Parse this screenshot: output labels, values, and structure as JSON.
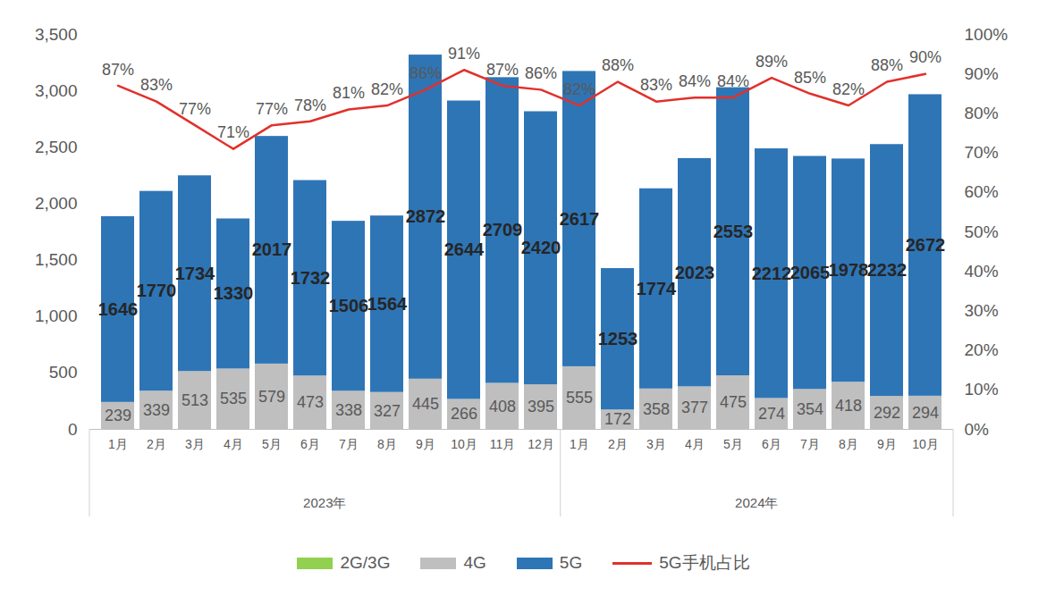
{
  "chart_data": {
    "type": "bar",
    "stacked": true,
    "data_labels": true,
    "grid": false,
    "legend": "bottom",
    "categories": [
      "1月",
      "2月",
      "3月",
      "4月",
      "5月",
      "6月",
      "7月",
      "8月",
      "9月",
      "10月",
      "11月",
      "12月",
      "1月",
      "2月",
      "3月",
      "4月",
      "5月",
      "6月",
      "7月",
      "8月",
      "9月",
      "10月"
    ],
    "category_groups": [
      {
        "name": "2023年",
        "count": 12
      },
      {
        "name": "2024年",
        "count": 10
      }
    ],
    "ylim": [
      0,
      3500
    ],
    "yticks": [
      0,
      500,
      1000,
      1500,
      2000,
      2500,
      3000,
      3500
    ],
    "y2lim": [
      0,
      100
    ],
    "y2ticks": [
      {
        "value": 0,
        "label": "0%"
      },
      {
        "value": 10,
        "label": "10%"
      },
      {
        "value": 20,
        "label": "20%"
      },
      {
        "value": 30,
        "label": "30%"
      },
      {
        "value": 40,
        "label": "40%"
      },
      {
        "value": 50,
        "label": "50%"
      },
      {
        "value": 60,
        "label": "60%"
      },
      {
        "value": 70,
        "label": "70%"
      },
      {
        "value": 80,
        "label": "80%"
      },
      {
        "value": 90,
        "label": "90%"
      },
      {
        "value": 100,
        "label": "100%"
      }
    ],
    "series": [
      {
        "name": "2G/3G",
        "color": "#92d050",
        "data_labels": false,
        "values": [
          0,
          0,
          0,
          0,
          0,
          0,
          0,
          0,
          0,
          0,
          0,
          0,
          0,
          0,
          0,
          0,
          0,
          0,
          0,
          0,
          0,
          0
        ]
      },
      {
        "name": "4G",
        "color": "#bfbfbf",
        "values": [
          239,
          339,
          513,
          535,
          579,
          473,
          338,
          327,
          445,
          266,
          408,
          395,
          555,
          172,
          358,
          377,
          475,
          274,
          354,
          418,
          292,
          294
        ]
      },
      {
        "name": "5G",
        "color": "#2e75b6",
        "values": [
          1646,
          1770,
          1734,
          1330,
          2017,
          1732,
          1506,
          1564,
          2872,
          2644,
          2709,
          2420,
          2617,
          1253,
          1774,
          2023,
          2553,
          2212,
          2065,
          1978,
          2232,
          2672
        ]
      },
      {
        "name": "5G手机占比",
        "type": "line",
        "axis": "y2",
        "color": "#e2302b",
        "values": [
          87,
          83,
          77,
          71,
          77,
          78,
          81,
          82,
          86,
          91,
          87,
          86,
          82,
          88,
          83,
          84,
          84,
          89,
          85,
          82,
          88,
          90
        ],
        "value_labels": [
          "87%",
          "83%",
          "77%",
          "71%",
          "77%",
          "78%",
          "81%",
          "82%",
          "86%",
          "91%",
          "87%",
          "86%",
          "82%",
          "88%",
          "83%",
          "84%",
          "84%",
          "89%",
          "85%",
          "82%",
          "88%",
          "90%"
        ]
      }
    ]
  }
}
